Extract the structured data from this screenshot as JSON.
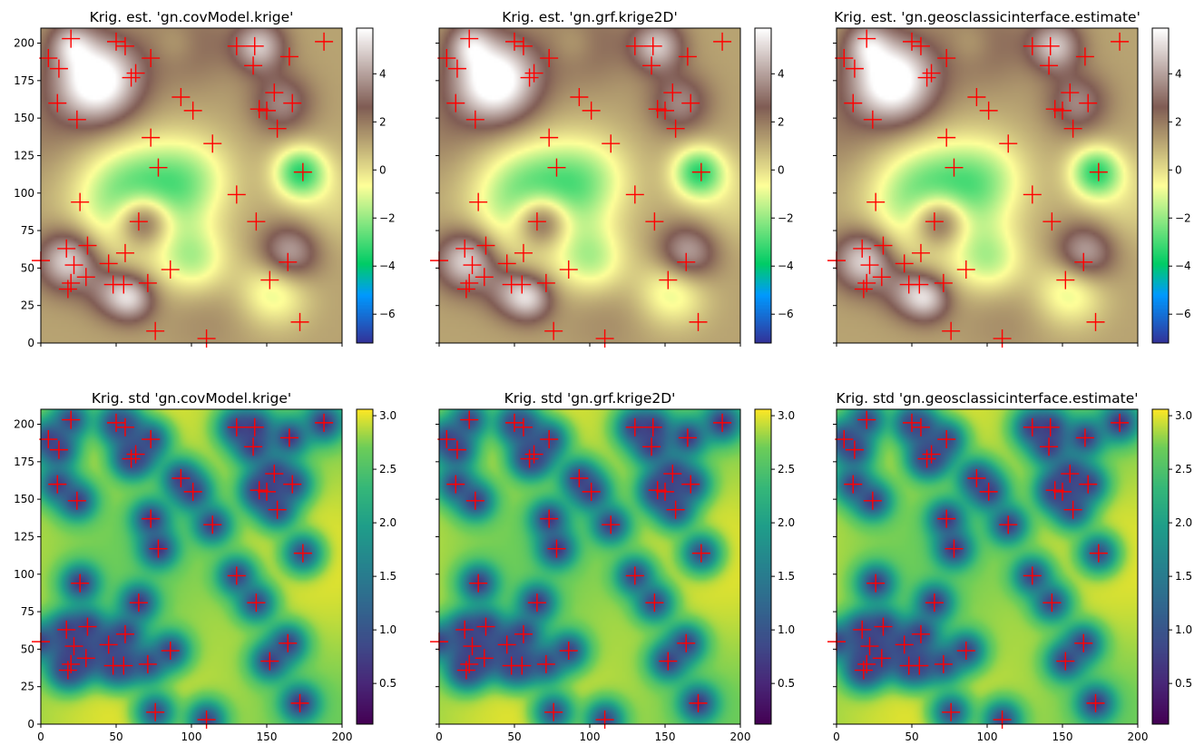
{
  "chart_data": [
    {
      "type": "heatmap",
      "title": "Krig. est. 'gn.covModel.krige'",
      "field": "estimate",
      "xlim": [
        0,
        200
      ],
      "ylim": [
        0,
        210
      ],
      "colorscale": "terrain",
      "crange": [
        -7.2,
        5.9
      ],
      "xticks": [
        0,
        50,
        100,
        150,
        200
      ],
      "yticks": [
        0,
        25,
        50,
        75,
        100,
        125,
        150,
        175,
        200
      ],
      "cticks": [
        -6,
        -4,
        -2,
        0,
        2,
        4
      ],
      "show_xticklabels": false,
      "show_yticklabels": true
    },
    {
      "type": "heatmap",
      "title": "Krig. est. 'gn.grf.krige2D'",
      "field": "estimate",
      "xlim": [
        0,
        200
      ],
      "ylim": [
        0,
        210
      ],
      "colorscale": "terrain",
      "crange": [
        -7.2,
        5.9
      ],
      "xticks": [
        0,
        50,
        100,
        150,
        200
      ],
      "yticks": [
        0,
        25,
        50,
        75,
        100,
        125,
        150,
        175,
        200
      ],
      "cticks": [
        -6,
        -4,
        -2,
        0,
        2,
        4
      ],
      "show_xticklabels": false,
      "show_yticklabels": false
    },
    {
      "type": "heatmap",
      "title": "Krig. est. 'gn.geosclassicinterface.estimate'",
      "field": "estimate",
      "xlim": [
        0,
        200
      ],
      "ylim": [
        0,
        210
      ],
      "colorscale": "terrain",
      "crange": [
        -7.2,
        5.9
      ],
      "xticks": [
        0,
        50,
        100,
        150,
        200
      ],
      "yticks": [
        0,
        25,
        50,
        75,
        100,
        125,
        150,
        175,
        200
      ],
      "cticks": [
        -6,
        -4,
        -2,
        0,
        2,
        4
      ],
      "show_xticklabels": false,
      "show_yticklabels": false
    },
    {
      "type": "heatmap",
      "title": "Krig. std 'gn.covModel.krige'",
      "field": "std",
      "xlim": [
        0,
        200
      ],
      "ylim": [
        0,
        210
      ],
      "colorscale": "viridis",
      "crange": [
        0.12,
        3.06
      ],
      "xticks": [
        0,
        50,
        100,
        150,
        200
      ],
      "yticks": [
        0,
        25,
        50,
        75,
        100,
        125,
        150,
        175,
        200
      ],
      "cticks": [
        0.5,
        1.0,
        1.5,
        2.0,
        2.5,
        3.0
      ],
      "show_xticklabels": true,
      "show_yticklabels": true
    },
    {
      "type": "heatmap",
      "title": "Krig. std 'gn.grf.krige2D'",
      "field": "std",
      "xlim": [
        0,
        200
      ],
      "ylim": [
        0,
        210
      ],
      "colorscale": "viridis",
      "crange": [
        0.12,
        3.06
      ],
      "xticks": [
        0,
        50,
        100,
        150,
        200
      ],
      "yticks": [
        0,
        25,
        50,
        75,
        100,
        125,
        150,
        175,
        200
      ],
      "cticks": [
        0.5,
        1.0,
        1.5,
        2.0,
        2.5,
        3.0
      ],
      "show_xticklabels": true,
      "show_yticklabels": false
    },
    {
      "type": "heatmap",
      "title": "Krig. std 'gn.geosclassicinterface.estimate'",
      "field": "std",
      "xlim": [
        0,
        200
      ],
      "ylim": [
        0,
        210
      ],
      "colorscale": "viridis",
      "crange": [
        0.12,
        3.06
      ],
      "xticks": [
        0,
        50,
        100,
        150,
        200
      ],
      "yticks": [
        0,
        25,
        50,
        75,
        100,
        125,
        150,
        175,
        200
      ],
      "cticks": [
        0.5,
        1.0,
        1.5,
        2.0,
        2.5,
        3.0
      ],
      "show_xticklabels": true,
      "show_yticklabels": false
    }
  ],
  "data_points": {
    "marker": "plus",
    "color": "#ff0000",
    "points": [
      [
        20,
        203
      ],
      [
        50,
        201
      ],
      [
        56,
        198
      ],
      [
        73,
        190
      ],
      [
        130,
        198
      ],
      [
        142,
        198
      ],
      [
        188,
        201
      ],
      [
        5,
        190
      ],
      [
        12,
        183
      ],
      [
        63,
        180
      ],
      [
        60,
        177
      ],
      [
        141,
        185
      ],
      [
        165,
        191
      ],
      [
        11,
        160
      ],
      [
        24,
        149
      ],
      [
        93,
        164
      ],
      [
        101,
        155
      ],
      [
        145,
        156
      ],
      [
        150,
        155
      ],
      [
        155,
        167
      ],
      [
        157,
        143
      ],
      [
        167,
        160
      ],
      [
        73,
        137
      ],
      [
        114,
        133
      ],
      [
        78,
        117
      ],
      [
        174,
        114
      ],
      [
        26,
        94
      ],
      [
        130,
        99
      ],
      [
        65,
        81
      ],
      [
        143,
        81
      ],
      [
        17,
        63
      ],
      [
        22,
        52
      ],
      [
        31,
        65
      ],
      [
        56,
        60
      ],
      [
        0,
        55
      ],
      [
        20,
        40
      ],
      [
        18,
        36
      ],
      [
        45,
        53
      ],
      [
        48,
        39
      ],
      [
        55,
        39
      ],
      [
        30,
        44
      ],
      [
        86,
        49
      ],
      [
        71,
        40
      ],
      [
        152,
        42
      ],
      [
        164,
        54
      ],
      [
        76,
        8
      ],
      [
        110,
        3
      ],
      [
        172,
        14
      ]
    ]
  },
  "field_model": {
    "estimate_bumps": [
      [
        37,
        175,
        5.7,
        20
      ],
      [
        18,
        55,
        4.0,
        14
      ],
      [
        60,
        30,
        3.4,
        11
      ],
      [
        165,
        60,
        3.3,
        14
      ],
      [
        145,
        198,
        3.5,
        12
      ],
      [
        20,
        200,
        2.5,
        10
      ],
      [
        160,
        160,
        2.3,
        14
      ],
      [
        45,
        35,
        1.8,
        12
      ],
      [
        100,
        200,
        1.2,
        20
      ],
      [
        68,
        82,
        4.8,
        13
      ],
      [
        63,
        95,
        -4.6,
        26
      ],
      [
        172,
        114,
        -4.2,
        12
      ],
      [
        100,
        110,
        -2.2,
        20
      ],
      [
        155,
        35,
        -2.4,
        16
      ],
      [
        102,
        55,
        -2.5,
        16
      ],
      [
        190,
        95,
        -1.0,
        22
      ],
      [
        90,
        200,
        -0.8,
        10
      ],
      [
        110,
        20,
        0.5,
        20
      ],
      [
        0,
        140,
        0.6,
        20
      ]
    ],
    "estimate_base": 1.2,
    "std_base": 2.85,
    "std_drop": 2.1,
    "std_range": 12
  }
}
